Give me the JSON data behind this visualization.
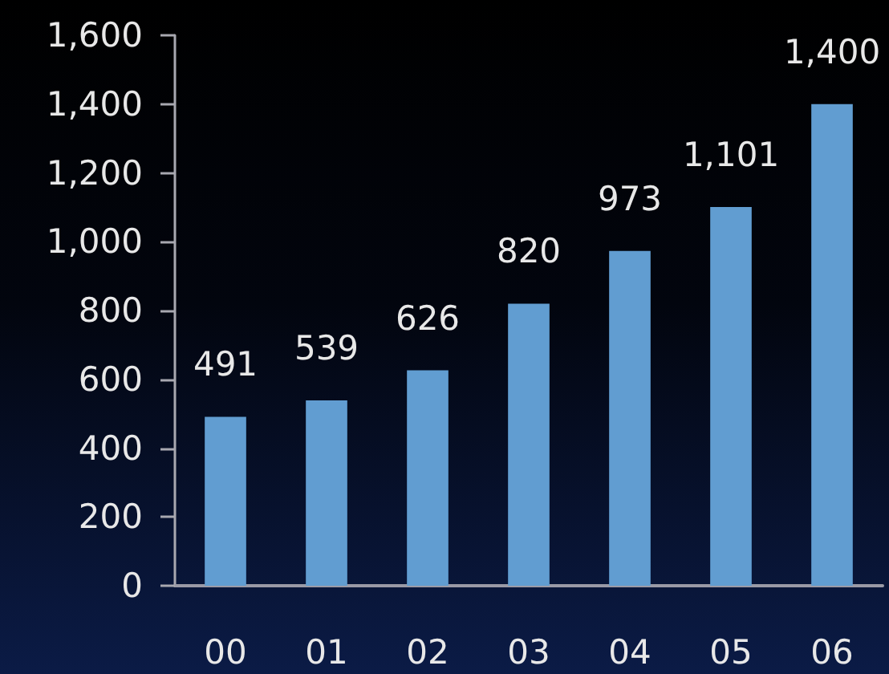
{
  "chart_data": {
    "type": "bar",
    "categories": [
      "00",
      "01",
      "02",
      "03",
      "04",
      "05",
      "06"
    ],
    "values": [
      491,
      539,
      626,
      820,
      973,
      1101,
      1400
    ],
    "value_labels": [
      "491",
      "539",
      "626",
      "820",
      "973",
      "1,101",
      "1,400"
    ],
    "color": "#619dd1",
    "ylim": [
      0,
      1600
    ],
    "yticks": [
      0,
      200,
      400,
      600,
      800,
      {
        "value": 1000,
        "label": "1,000"
      },
      {
        "value": 1200,
        "label": "1,200"
      },
      {
        "value": 1400,
        "label": "1,400"
      },
      {
        "value": 1600,
        "label": "1,600"
      }
    ],
    "grid": false
  }
}
